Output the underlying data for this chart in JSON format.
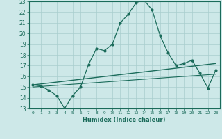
{
  "xlabel": "Humidex (Indice chaleur)",
  "xlim": [
    -0.5,
    23.5
  ],
  "ylim": [
    13,
    23
  ],
  "yticks": [
    13,
    14,
    15,
    16,
    17,
    18,
    19,
    20,
    21,
    22,
    23
  ],
  "xticks": [
    0,
    1,
    2,
    3,
    4,
    5,
    6,
    7,
    8,
    9,
    10,
    11,
    12,
    13,
    14,
    15,
    16,
    17,
    18,
    19,
    20,
    21,
    22,
    23
  ],
  "bg_color": "#cde8e8",
  "grid_color": "#a8cece",
  "line_color": "#1a6b5a",
  "line1_x": [
    0,
    1,
    2,
    3,
    4,
    5,
    6,
    7,
    8,
    9,
    10,
    11,
    12,
    13,
    14,
    15,
    16,
    17,
    18,
    19,
    20,
    21,
    22,
    23
  ],
  "line1_y": [
    15.2,
    15.1,
    14.7,
    14.2,
    13.0,
    14.2,
    15.0,
    17.1,
    18.6,
    18.4,
    19.0,
    21.0,
    21.8,
    22.9,
    23.1,
    22.2,
    19.8,
    18.2,
    17.0,
    17.2,
    17.5,
    16.3,
    14.9,
    16.6
  ],
  "line2_x": [
    0,
    23
  ],
  "line2_y": [
    15.2,
    17.2
  ],
  "line3_x": [
    0,
    23
  ],
  "line3_y": [
    15.0,
    16.2
  ]
}
